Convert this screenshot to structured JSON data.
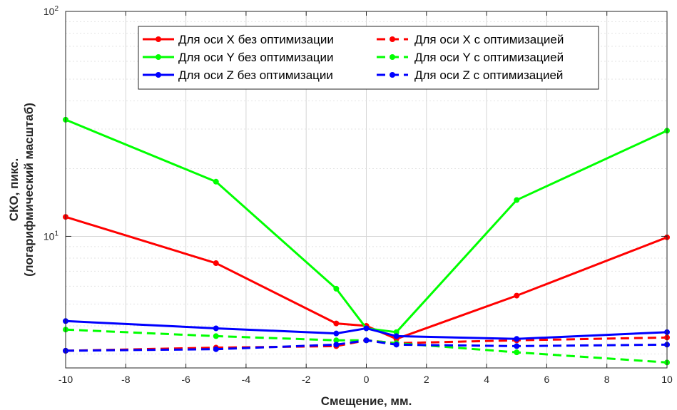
{
  "chart_data": {
    "type": "line",
    "title": "",
    "xlabel": "Смещение, мм.",
    "ylabel_lines": [
      "СКО, пикс.",
      "(логарифмический масштаб)"
    ],
    "yscale": "log",
    "xlim": [
      -10,
      10
    ],
    "ylim": [
      2.6,
      100
    ],
    "xticks": [
      -10,
      -8,
      -6,
      -4,
      -2,
      0,
      2,
      4,
      6,
      8,
      10
    ],
    "yticks": [
      {
        "value": 10,
        "label": "10",
        "sup": "1"
      },
      {
        "value": 100,
        "label": "10",
        "sup": "2"
      }
    ],
    "grid": true,
    "legend_position": "top-center",
    "x": [
      -10,
      -5,
      -1,
      0,
      1,
      5,
      10
    ],
    "series": [
      {
        "name": "Для оси X без оптимизации",
        "color": "#ff0000",
        "dashed": false,
        "values": [
          12.2,
          7.6,
          4.1,
          4.0,
          3.5,
          5.45,
          9.9
        ]
      },
      {
        "name": "Для оси X с оптимизацией",
        "color": "#ff0000",
        "dashed": true,
        "values": [
          3.1,
          3.2,
          3.25,
          3.45,
          3.35,
          3.45,
          3.55
        ]
      },
      {
        "name": "Для оси Y без оптимизации",
        "color": "#00ff00",
        "dashed": false,
        "values": [
          33.0,
          17.5,
          5.85,
          3.9,
          3.75,
          14.5,
          29.5
        ]
      },
      {
        "name": "Для оси Y с оптимизацией",
        "color": "#00ff00",
        "dashed": true,
        "values": [
          3.85,
          3.6,
          3.45,
          3.45,
          3.35,
          3.05,
          2.75
        ]
      },
      {
        "name": "Для оси Z без оптимизации",
        "color": "#0000ff",
        "dashed": false,
        "values": [
          4.2,
          3.9,
          3.7,
          3.9,
          3.6,
          3.5,
          3.75
        ]
      },
      {
        "name": "Для оси Z с оптимизацией",
        "color": "#0000ff",
        "dashed": true,
        "values": [
          3.1,
          3.15,
          3.3,
          3.45,
          3.3,
          3.25,
          3.3
        ]
      }
    ]
  }
}
